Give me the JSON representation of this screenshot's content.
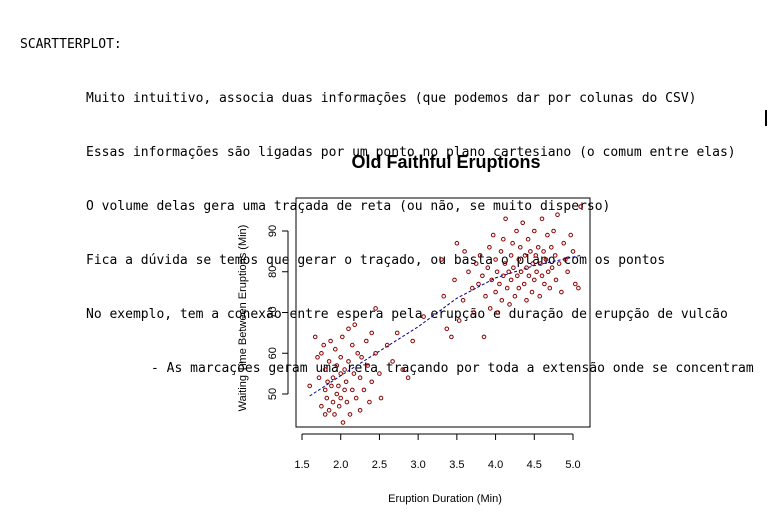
{
  "notes": {
    "heading": "SCARTTERPLOT:",
    "lines": [
      "Muito intuitivo, associa duas informações (que podemos dar por colunas do CSV)",
      "Essas informações são ligadas por um ponto no plano cartesiano (o comum entre elas)",
      "O volume delas gera uma traçada de reta (ou não, se muito disperso)",
      "Fica a dúvida se temos que gerar o traçado, ou basta o plano com os pontos",
      "No exemplo, tem a conexão entre espera pela erupção e duração de erupção de vulcão"
    ],
    "subline": "- As marcações geram uma reta traçando por toda a extensão onde se concentram"
  },
  "chart_data": {
    "type": "scatter",
    "title": "Old Faithful Eruptions",
    "xlabel": "Eruption Duration (Min)",
    "ylabel": "Waiting Time Between Eruptions (Min)",
    "xlim": [
      1.5,
      5.1
    ],
    "ylim": [
      43,
      96
    ],
    "xticks": [
      "1.5",
      "2.0",
      "2.5",
      "3.0",
      "3.5",
      "4.0",
      "4.5",
      "5.0"
    ],
    "yticks": [
      "50",
      "60",
      "70",
      "80",
      "90"
    ],
    "grid": false,
    "point_color": "#8b0000",
    "trend_color": "#00008b",
    "trend": [
      {
        "x": 1.6,
        "y": 49.5
      },
      {
        "x": 2.0,
        "y": 54.5
      },
      {
        "x": 2.5,
        "y": 60.5
      },
      {
        "x": 3.0,
        "y": 66.5
      },
      {
        "x": 3.5,
        "y": 73.5
      },
      {
        "x": 4.0,
        "y": 78.5
      },
      {
        "x": 4.5,
        "y": 81.5
      },
      {
        "x": 5.1,
        "y": 84.0
      }
    ],
    "points": [
      {
        "x": 1.6,
        "y": 52
      },
      {
        "x": 1.67,
        "y": 64
      },
      {
        "x": 1.7,
        "y": 59
      },
      {
        "x": 1.72,
        "y": 54
      },
      {
        "x": 1.75,
        "y": 47
      },
      {
        "x": 1.75,
        "y": 60
      },
      {
        "x": 1.78,
        "y": 62
      },
      {
        "x": 1.8,
        "y": 51
      },
      {
        "x": 1.8,
        "y": 45
      },
      {
        "x": 1.8,
        "y": 56
      },
      {
        "x": 1.82,
        "y": 49
      },
      {
        "x": 1.83,
        "y": 53
      },
      {
        "x": 1.85,
        "y": 46
      },
      {
        "x": 1.85,
        "y": 58
      },
      {
        "x": 1.87,
        "y": 63
      },
      {
        "x": 1.88,
        "y": 52
      },
      {
        "x": 1.9,
        "y": 48
      },
      {
        "x": 1.9,
        "y": 54
      },
      {
        "x": 1.92,
        "y": 45
      },
      {
        "x": 1.93,
        "y": 61
      },
      {
        "x": 1.95,
        "y": 50
      },
      {
        "x": 1.95,
        "y": 57
      },
      {
        "x": 1.97,
        "y": 52
      },
      {
        "x": 1.98,
        "y": 47
      },
      {
        "x": 2.0,
        "y": 55
      },
      {
        "x": 2.0,
        "y": 49
      },
      {
        "x": 2.0,
        "y": 59
      },
      {
        "x": 2.02,
        "y": 64
      },
      {
        "x": 2.03,
        "y": 43
      },
      {
        "x": 2.05,
        "y": 51
      },
      {
        "x": 2.05,
        "y": 56
      },
      {
        "x": 2.07,
        "y": 53
      },
      {
        "x": 2.08,
        "y": 48
      },
      {
        "x": 2.1,
        "y": 58
      },
      {
        "x": 2.1,
        "y": 66
      },
      {
        "x": 2.12,
        "y": 45
      },
      {
        "x": 2.15,
        "y": 51
      },
      {
        "x": 2.15,
        "y": 62
      },
      {
        "x": 2.17,
        "y": 55
      },
      {
        "x": 2.18,
        "y": 67
      },
      {
        "x": 2.2,
        "y": 49
      },
      {
        "x": 2.22,
        "y": 60
      },
      {
        "x": 2.25,
        "y": 54
      },
      {
        "x": 2.25,
        "y": 46
      },
      {
        "x": 2.27,
        "y": 59
      },
      {
        "x": 2.3,
        "y": 51
      },
      {
        "x": 2.33,
        "y": 63
      },
      {
        "x": 2.35,
        "y": 57
      },
      {
        "x": 2.37,
        "y": 48
      },
      {
        "x": 2.4,
        "y": 65
      },
      {
        "x": 2.4,
        "y": 53
      },
      {
        "x": 2.45,
        "y": 71
      },
      {
        "x": 2.45,
        "y": 60
      },
      {
        "x": 2.5,
        "y": 55
      },
      {
        "x": 2.52,
        "y": 49
      },
      {
        "x": 2.6,
        "y": 62
      },
      {
        "x": 2.67,
        "y": 58
      },
      {
        "x": 2.73,
        "y": 65
      },
      {
        "x": 2.8,
        "y": 56
      },
      {
        "x": 2.87,
        "y": 54
      },
      {
        "x": 2.93,
        "y": 63
      },
      {
        "x": 3.07,
        "y": 69
      },
      {
        "x": 3.3,
        "y": 83
      },
      {
        "x": 3.33,
        "y": 74
      },
      {
        "x": 3.37,
        "y": 66
      },
      {
        "x": 3.43,
        "y": 64
      },
      {
        "x": 3.47,
        "y": 78
      },
      {
        "x": 3.5,
        "y": 87
      },
      {
        "x": 3.53,
        "y": 68
      },
      {
        "x": 3.58,
        "y": 73
      },
      {
        "x": 3.6,
        "y": 85
      },
      {
        "x": 3.65,
        "y": 80
      },
      {
        "x": 3.7,
        "y": 76
      },
      {
        "x": 3.72,
        "y": 70
      },
      {
        "x": 3.75,
        "y": 82
      },
      {
        "x": 3.78,
        "y": 77
      },
      {
        "x": 3.8,
        "y": 84
      },
      {
        "x": 3.83,
        "y": 79
      },
      {
        "x": 3.85,
        "y": 64
      },
      {
        "x": 3.87,
        "y": 74
      },
      {
        "x": 3.9,
        "y": 81
      },
      {
        "x": 3.92,
        "y": 86
      },
      {
        "x": 3.93,
        "y": 71
      },
      {
        "x": 3.95,
        "y": 78
      },
      {
        "x": 3.97,
        "y": 89
      },
      {
        "x": 4.0,
        "y": 75
      },
      {
        "x": 4.0,
        "y": 83
      },
      {
        "x": 4.02,
        "y": 80
      },
      {
        "x": 4.03,
        "y": 70
      },
      {
        "x": 4.05,
        "y": 77
      },
      {
        "x": 4.07,
        "y": 85
      },
      {
        "x": 4.08,
        "y": 73
      },
      {
        "x": 4.1,
        "y": 79
      },
      {
        "x": 4.1,
        "y": 88
      },
      {
        "x": 4.12,
        "y": 82
      },
      {
        "x": 4.13,
        "y": 93
      },
      {
        "x": 4.15,
        "y": 76
      },
      {
        "x": 4.17,
        "y": 80
      },
      {
        "x": 4.18,
        "y": 72
      },
      {
        "x": 4.2,
        "y": 84
      },
      {
        "x": 4.2,
        "y": 78
      },
      {
        "x": 4.22,
        "y": 87
      },
      {
        "x": 4.23,
        "y": 81
      },
      {
        "x": 4.25,
        "y": 74
      },
      {
        "x": 4.27,
        "y": 90
      },
      {
        "x": 4.28,
        "y": 79
      },
      {
        "x": 4.3,
        "y": 83
      },
      {
        "x": 4.3,
        "y": 76
      },
      {
        "x": 4.32,
        "y": 86
      },
      {
        "x": 4.33,
        "y": 80
      },
      {
        "x": 4.35,
        "y": 92
      },
      {
        "x": 4.37,
        "y": 77
      },
      {
        "x": 4.38,
        "y": 84
      },
      {
        "x": 4.4,
        "y": 81
      },
      {
        "x": 4.4,
        "y": 73
      },
      {
        "x": 4.42,
        "y": 88
      },
      {
        "x": 4.43,
        "y": 79
      },
      {
        "x": 4.45,
        "y": 85
      },
      {
        "x": 4.47,
        "y": 75
      },
      {
        "x": 4.48,
        "y": 82
      },
      {
        "x": 4.5,
        "y": 90
      },
      {
        "x": 4.5,
        "y": 78
      },
      {
        "x": 4.52,
        "y": 84
      },
      {
        "x": 4.53,
        "y": 80
      },
      {
        "x": 4.55,
        "y": 86
      },
      {
        "x": 4.57,
        "y": 74
      },
      {
        "x": 4.58,
        "y": 82
      },
      {
        "x": 4.6,
        "y": 93
      },
      {
        "x": 4.6,
        "y": 79
      },
      {
        "x": 4.62,
        "y": 85
      },
      {
        "x": 4.63,
        "y": 77
      },
      {
        "x": 4.65,
        "y": 83
      },
      {
        "x": 4.67,
        "y": 89
      },
      {
        "x": 4.68,
        "y": 80
      },
      {
        "x": 4.7,
        "y": 76
      },
      {
        "x": 4.72,
        "y": 86
      },
      {
        "x": 4.73,
        "y": 81
      },
      {
        "x": 4.75,
        "y": 90
      },
      {
        "x": 4.77,
        "y": 84
      },
      {
        "x": 4.78,
        "y": 78
      },
      {
        "x": 4.8,
        "y": 94
      },
      {
        "x": 4.82,
        "y": 82
      },
      {
        "x": 4.85,
        "y": 75
      },
      {
        "x": 4.88,
        "y": 87
      },
      {
        "x": 4.9,
        "y": 83
      },
      {
        "x": 4.93,
        "y": 80
      },
      {
        "x": 4.97,
        "y": 89
      },
      {
        "x": 5.0,
        "y": 85
      },
      {
        "x": 5.03,
        "y": 77
      },
      {
        "x": 5.07,
        "y": 76
      },
      {
        "x": 5.1,
        "y": 96
      }
    ]
  }
}
